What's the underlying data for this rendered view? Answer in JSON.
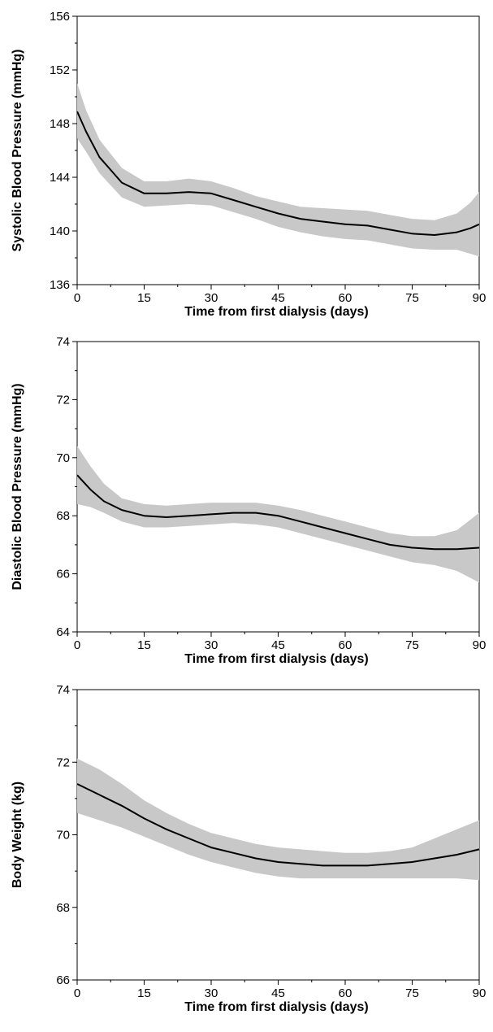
{
  "chart_data": [
    {
      "type": "area",
      "title": "",
      "xlabel": "Time from first dialysis (days)",
      "ylabel": "Systolic Blood Pressure (mmHg)",
      "xlim": [
        0,
        90
      ],
      "ylim": [
        136,
        156
      ],
      "xticks": [
        "0",
        "15",
        "30",
        "45",
        "60",
        "75",
        "90"
      ],
      "yticks": [
        "136",
        "140",
        "144",
        "148",
        "152",
        "156"
      ],
      "grid": false,
      "series": [
        {
          "x": [
            0,
            2,
            5,
            10,
            15,
            20,
            25,
            30,
            35,
            40,
            45,
            50,
            55,
            60,
            65,
            70,
            75,
            80,
            85,
            88,
            90
          ],
          "y": [
            148.9,
            147.4,
            145.5,
            143.6,
            142.8,
            142.8,
            142.9,
            142.8,
            142.3,
            141.8,
            141.3,
            140.9,
            140.7,
            140.5,
            140.4,
            140.1,
            139.8,
            139.7,
            139.9,
            140.2,
            140.5
          ],
          "lower": [
            146.9,
            145.9,
            144.3,
            142.5,
            141.8,
            141.9,
            142.0,
            141.9,
            141.4,
            140.9,
            140.3,
            139.9,
            139.6,
            139.4,
            139.3,
            139.0,
            138.7,
            138.6,
            138.6,
            138.3,
            138.1
          ],
          "upper": [
            151.0,
            149.0,
            146.8,
            144.7,
            143.7,
            143.7,
            143.9,
            143.7,
            143.2,
            142.6,
            142.2,
            141.8,
            141.7,
            141.6,
            141.5,
            141.2,
            140.9,
            140.8,
            141.3,
            142.1,
            142.9
          ],
          "color": "#000000",
          "band_color": "#c8c8c8"
        }
      ]
    },
    {
      "type": "area",
      "title": "",
      "xlabel": "Time from first dialysis (days)",
      "ylabel": "Diastolic Blood Pressure (mmHg)",
      "xlim": [
        0,
        90
      ],
      "ylim": [
        64,
        74
      ],
      "xticks": [
        "0",
        "15",
        "30",
        "45",
        "60",
        "75",
        "90"
      ],
      "yticks": [
        "64",
        "66",
        "68",
        "70",
        "72",
        "74"
      ],
      "grid": false,
      "series": [
        {
          "x": [
            0,
            3,
            6,
            10,
            15,
            20,
            25,
            30,
            35,
            40,
            45,
            50,
            55,
            60,
            65,
            70,
            75,
            80,
            85,
            90
          ],
          "y": [
            69.4,
            68.9,
            68.5,
            68.2,
            68.0,
            67.95,
            68.0,
            68.05,
            68.1,
            68.1,
            68.0,
            67.8,
            67.6,
            67.4,
            67.2,
            67.0,
            66.9,
            66.85,
            66.85,
            66.9
          ],
          "lower": [
            68.4,
            68.3,
            68.1,
            67.8,
            67.6,
            67.6,
            67.65,
            67.7,
            67.75,
            67.7,
            67.6,
            67.4,
            67.2,
            67.0,
            66.8,
            66.6,
            66.4,
            66.3,
            66.1,
            65.7
          ],
          "upper": [
            70.4,
            69.7,
            69.1,
            68.6,
            68.4,
            68.35,
            68.4,
            68.45,
            68.45,
            68.45,
            68.35,
            68.2,
            68.0,
            67.8,
            67.6,
            67.4,
            67.3,
            67.3,
            67.5,
            68.1
          ],
          "color": "#000000",
          "band_color": "#c8c8c8"
        }
      ]
    },
    {
      "type": "area",
      "title": "",
      "xlabel": "Time from first dialysis (days)",
      "ylabel": "Body Weight (kg)",
      "xlim": [
        0,
        90
      ],
      "ylim": [
        66,
        74
      ],
      "xticks": [
        "0",
        "15",
        "30",
        "45",
        "60",
        "75",
        "90"
      ],
      "yticks": [
        "66",
        "68",
        "70",
        "72",
        "74"
      ],
      "grid": false,
      "series": [
        {
          "x": [
            0,
            5,
            10,
            15,
            20,
            25,
            30,
            35,
            40,
            45,
            50,
            55,
            60,
            65,
            70,
            75,
            80,
            85,
            90
          ],
          "y": [
            71.4,
            71.1,
            70.8,
            70.45,
            70.15,
            69.9,
            69.65,
            69.5,
            69.35,
            69.25,
            69.2,
            69.15,
            69.15,
            69.15,
            69.2,
            69.25,
            69.35,
            69.45,
            69.6
          ],
          "lower": [
            70.6,
            70.4,
            70.2,
            69.95,
            69.7,
            69.45,
            69.25,
            69.1,
            68.95,
            68.85,
            68.8,
            68.8,
            68.8,
            68.8,
            68.8,
            68.8,
            68.8,
            68.8,
            68.75
          ],
          "upper": [
            72.1,
            71.8,
            71.4,
            70.95,
            70.6,
            70.3,
            70.05,
            69.9,
            69.75,
            69.65,
            69.6,
            69.55,
            69.5,
            69.5,
            69.55,
            69.65,
            69.9,
            70.15,
            70.4
          ],
          "color": "#000000",
          "band_color": "#c8c8c8"
        }
      ]
    }
  ]
}
